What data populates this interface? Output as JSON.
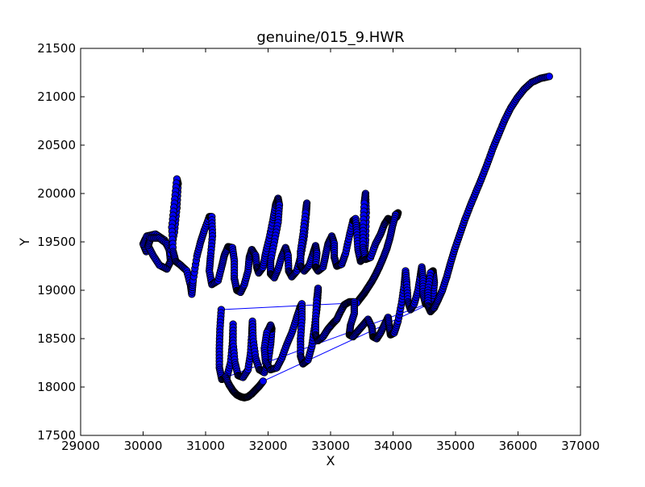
{
  "chart_data": {
    "type": "line",
    "title": "genuine/015_9.HWR",
    "xlabel": "X",
    "ylabel": "Y",
    "xlim": [
      29000,
      37000
    ],
    "ylim": [
      17500,
      21500
    ],
    "xticks": [
      29000,
      30000,
      31000,
      32000,
      33000,
      34000,
      35000,
      36000,
      37000
    ],
    "yticks": [
      17500,
      18000,
      18500,
      19000,
      19500,
      20000,
      20500,
      21000,
      21500
    ],
    "grid": false,
    "marker": "circle",
    "line_color": "#0000ff",
    "marker_face": "#0000ff",
    "marker_edge": "#000000",
    "series": [
      {
        "name": "",
        "strokes": [
          [
            [
              30050,
              19400
            ],
            [
              30000,
              19480
            ],
            [
              30060,
              19560
            ],
            [
              30200,
              19580
            ],
            [
              30340,
              19520
            ],
            [
              30420,
              19420
            ],
            [
              30440,
              19300
            ],
            [
              30380,
              19220
            ],
            [
              30260,
              19260
            ],
            [
              30160,
              19360
            ],
            [
              30080,
              19460
            ],
            [
              30120,
              19540
            ],
            [
              30260,
              19540
            ],
            [
              30380,
              19480
            ],
            [
              30440,
              19380
            ],
            [
              30500,
              19600
            ],
            [
              30540,
              19850
            ],
            [
              30560,
              20100
            ],
            [
              30540,
              20150
            ],
            [
              30500,
              19900
            ],
            [
              30460,
              19650
            ],
            [
              30480,
              19400
            ],
            [
              30520,
              19300
            ],
            [
              30600,
              19260
            ],
            [
              30700,
              19200
            ],
            [
              30760,
              19050
            ],
            [
              30780,
              18960
            ],
            [
              30800,
              19100
            ],
            [
              30860,
              19350
            ],
            [
              30920,
              19500
            ],
            [
              30980,
              19620
            ],
            [
              31060,
              19760
            ],
            [
              31100,
              19760
            ],
            [
              31110,
              19560
            ],
            [
              31080,
              19350
            ],
            [
              31060,
              19200
            ],
            [
              31100,
              19060
            ],
            [
              31200,
              19100
            ],
            [
              31260,
              19250
            ],
            [
              31300,
              19360
            ],
            [
              31360,
              19450
            ],
            [
              31430,
              19440
            ],
            [
              31460,
              19300
            ],
            [
              31460,
              19120
            ],
            [
              31500,
              19000
            ],
            [
              31560,
              18980
            ],
            [
              31620,
              19060
            ],
            [
              31680,
              19200
            ],
            [
              31700,
              19340
            ],
            [
              31740,
              19420
            ],
            [
              31800,
              19360
            ],
            [
              31820,
              19240
            ],
            [
              31850,
              19180
            ],
            [
              31920,
              19240
            ],
            [
              31960,
              19380
            ],
            [
              32020,
              19540
            ],
            [
              32080,
              19730
            ],
            [
              32120,
              19880
            ],
            [
              32160,
              19950
            ],
            [
              32180,
              19880
            ],
            [
              32160,
              19700
            ],
            [
              32100,
              19500
            ],
            [
              32040,
              19300
            ],
            [
              32040,
              19170
            ],
            [
              32100,
              19130
            ],
            [
              32160,
              19220
            ],
            [
              32220,
              19350
            ],
            [
              32280,
              19440
            ],
            [
              32320,
              19360
            ],
            [
              32330,
              19200
            ],
            [
              32380,
              19140
            ],
            [
              32460,
              19200
            ],
            [
              32520,
              19340
            ],
            [
              32580,
              19560
            ],
            [
              32610,
              19780
            ],
            [
              32620,
              19900
            ],
            [
              32600,
              19800
            ],
            [
              32560,
              19580
            ],
            [
              32520,
              19400
            ],
            [
              32520,
              19250
            ],
            [
              32580,
              19200
            ],
            [
              32660,
              19260
            ],
            [
              32720,
              19380
            ],
            [
              32760,
              19460
            ],
            [
              32780,
              19380
            ],
            [
              32760,
              19240
            ],
            [
              32800,
              19200
            ],
            [
              32880,
              19240
            ],
            [
              32920,
              19360
            ],
            [
              32960,
              19480
            ],
            [
              33020,
              19560
            ],
            [
              33060,
              19480
            ],
            [
              33060,
              19340
            ],
            [
              33100,
              19250
            ],
            [
              33180,
              19270
            ],
            [
              33240,
              19380
            ],
            [
              33300,
              19560
            ],
            [
              33360,
              19720
            ],
            [
              33400,
              19740
            ],
            [
              33420,
              19600
            ],
            [
              33440,
              19420
            ],
            [
              33480,
              19300
            ],
            [
              33540,
              19340
            ],
            [
              33560,
              19520
            ],
            [
              33570,
              19800
            ],
            [
              33560,
              20000
            ],
            [
              33540,
              19900
            ],
            [
              33520,
              19650
            ],
            [
              33520,
              19440
            ],
            [
              33560,
              19320
            ],
            [
              33640,
              19340
            ],
            [
              33720,
              19480
            ],
            [
              33800,
              19580
            ],
            [
              33860,
              19680
            ],
            [
              33920,
              19740
            ],
            [
              33990,
              19720
            ],
            [
              34060,
              19760
            ],
            [
              34080,
              19800
            ],
            [
              34040,
              19780
            ]
          ],
          [
            [
              34040,
              19780
            ],
            [
              33990,
              19660
            ],
            [
              33950,
              19540
            ],
            [
              33900,
              19430
            ],
            [
              33840,
              19330
            ],
            [
              33780,
              19240
            ],
            [
              33720,
              19160
            ],
            [
              33660,
              19090
            ],
            [
              33600,
              19030
            ],
            [
              33540,
              18970
            ],
            [
              33480,
              18920
            ],
            [
              33420,
              18870
            ]
          ],
          [
            [
              31250,
              18800
            ],
            [
              31230,
              18600
            ],
            [
              31220,
              18400
            ],
            [
              31220,
              18200
            ],
            [
              31260,
              18080
            ],
            [
              31340,
              18100
            ],
            [
              31400,
              18250
            ],
            [
              31430,
              18450
            ],
            [
              31440,
              18650
            ],
            [
              31440,
              18450
            ],
            [
              31470,
              18250
            ],
            [
              31520,
              18120
            ],
            [
              31600,
              18100
            ],
            [
              31680,
              18180
            ],
            [
              31720,
              18350
            ],
            [
              31740,
              18550
            ],
            [
              31750,
              18680
            ],
            [
              31760,
              18500
            ],
            [
              31800,
              18300
            ],
            [
              31860,
              18180
            ],
            [
              31940,
              18150
            ],
            [
              32000,
              18260
            ],
            [
              32040,
              18440
            ],
            [
              32060,
              18600
            ],
            [
              32040,
              18640
            ],
            [
              31980,
              18560
            ],
            [
              31940,
              18400
            ],
            [
              31960,
              18260
            ],
            [
              32040,
              18180
            ],
            [
              32140,
              18200
            ],
            [
              32220,
              18300
            ],
            [
              32300,
              18440
            ],
            [
              32380,
              18560
            ],
            [
              32450,
              18700
            ],
            [
              32510,
              18820
            ],
            [
              32540,
              18860
            ],
            [
              32540,
              18700
            ],
            [
              32520,
              18500
            ],
            [
              32520,
              18320
            ],
            [
              32560,
              18240
            ],
            [
              32640,
              18280
            ],
            [
              32700,
              18420
            ],
            [
              32740,
              18600
            ],
            [
              32780,
              18800
            ],
            [
              32800,
              18980
            ],
            [
              32800,
              19020
            ],
            [
              32780,
              18900
            ],
            [
              32760,
              18700
            ],
            [
              32760,
              18540
            ],
            [
              32800,
              18480
            ],
            [
              32880,
              18520
            ],
            [
              32960,
              18600
            ],
            [
              33040,
              18660
            ],
            [
              33100,
              18700
            ],
            [
              33160,
              18780
            ],
            [
              33220,
              18850
            ],
            [
              33300,
              18880
            ],
            [
              33380,
              18880
            ],
            [
              33380,
              18760
            ],
            [
              33320,
              18640
            ],
            [
              33300,
              18540
            ],
            [
              33360,
              18520
            ],
            [
              33440,
              18580
            ],
            [
              33520,
              18640
            ],
            [
              33600,
              18700
            ],
            [
              33660,
              18620
            ],
            [
              33680,
              18520
            ],
            [
              33740,
              18500
            ],
            [
              33800,
              18560
            ],
            [
              33860,
              18640
            ],
            [
              33920,
              18720
            ],
            [
              33940,
              18620
            ],
            [
              33960,
              18540
            ],
            [
              34020,
              18560
            ],
            [
              34080,
              18680
            ],
            [
              34140,
              18880
            ],
            [
              34180,
              19060
            ],
            [
              34200,
              19200
            ],
            [
              34220,
              19060
            ],
            [
              34240,
              18880
            ],
            [
              34280,
              18800
            ],
            [
              34340,
              18860
            ],
            [
              34400,
              19000
            ],
            [
              34440,
              19160
            ],
            [
              34460,
              19240
            ],
            [
              34480,
              19120
            ],
            [
              34480,
              18960
            ],
            [
              34520,
              18860
            ],
            [
              34580,
              18840
            ],
            [
              34640,
              18920
            ],
            [
              34660,
              19080
            ],
            [
              34640,
              19200
            ],
            [
              34600,
              19180
            ],
            [
              34560,
              19000
            ],
            [
              34560,
              18840
            ],
            [
              34600,
              18780
            ],
            [
              34660,
              18820
            ],
            [
              34720,
              18900
            ]
          ],
          [
            [
              31320,
              18100
            ],
            [
              31380,
              18020
            ],
            [
              31440,
              17960
            ],
            [
              31500,
              17920
            ],
            [
              31560,
              17900
            ],
            [
              31620,
              17890
            ],
            [
              31680,
              17900
            ],
            [
              31740,
              17930
            ],
            [
              31800,
              17970
            ],
            [
              31860,
              18010
            ],
            [
              31920,
              18060
            ]
          ],
          [
            [
              34720,
              18900
            ],
            [
              34790,
              19000
            ],
            [
              34860,
              19140
            ],
            [
              34920,
              19280
            ],
            [
              34990,
              19430
            ],
            [
              35070,
              19580
            ],
            [
              35150,
              19730
            ],
            [
              35240,
              19880
            ],
            [
              35330,
              20020
            ],
            [
              35420,
              20160
            ],
            [
              35510,
              20310
            ],
            [
              35600,
              20470
            ],
            [
              35690,
              20610
            ],
            [
              35780,
              20750
            ],
            [
              35880,
              20880
            ],
            [
              35990,
              20990
            ],
            [
              36100,
              21080
            ],
            [
              36220,
              21150
            ],
            [
              36360,
              21190
            ],
            [
              36500,
              21210
            ]
          ]
        ]
      }
    ]
  }
}
